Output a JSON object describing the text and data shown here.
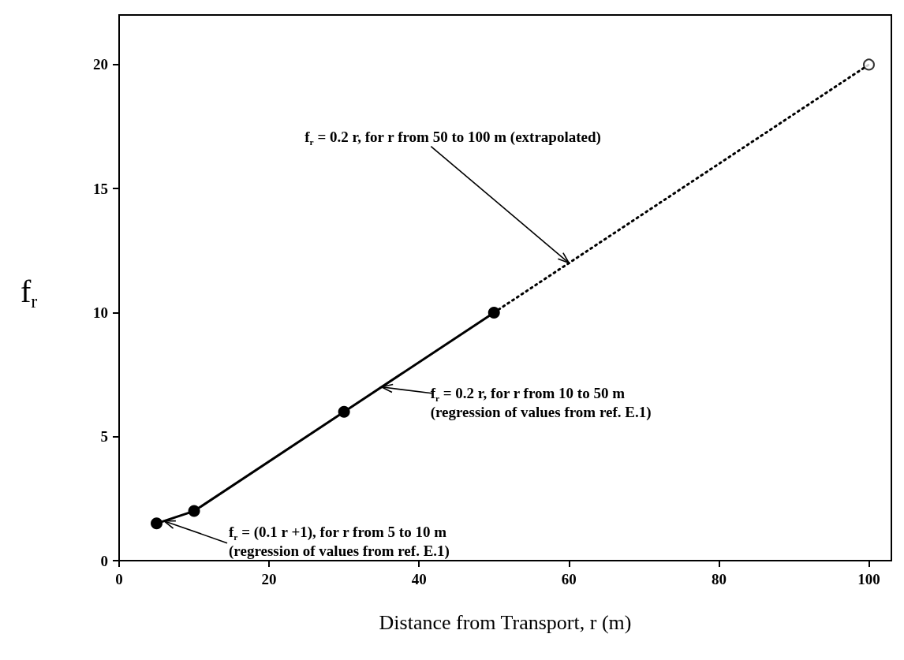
{
  "chart_data": {
    "type": "line",
    "xlabel": "Distance from Transport, r (m)",
    "ylabel": "f$_{r}$",
    "xlim": [
      0,
      103
    ],
    "xticks": [
      0,
      20,
      40,
      60,
      80,
      100
    ],
    "ylim": [
      0,
      22
    ],
    "yticks": [
      0,
      5,
      10,
      15,
      20
    ],
    "grid": false,
    "series": [
      {
        "x": [
          5,
          10,
          30,
          50
        ],
        "values": [
          1.5,
          2,
          6,
          10
        ],
        "color": "#000000",
        "marker": "circle",
        "line_style": "solid"
      },
      {
        "x": [
          50,
          100
        ],
        "values": [
          10,
          20
        ],
        "color": "#000000",
        "marker": "none",
        "line_style": "dotted"
      },
      {
        "type": "scatter",
        "x": [
          100
        ],
        "values": [
          20
        ],
        "color": "#000000",
        "marker": "circle"
      }
    ],
    "annotations": [
      {
        "text": "f$_{r}$ = 0.2 r, for r from 50 to 100 m (extrapolated)",
        "x": 60,
        "y": 12
      },
      {
        "text": "f$_{r}$ = 0.2 r, for r from 10 to 50 m\n(regression of values from ref. E.1)",
        "x": 35,
        "y": 7
      },
      {
        "text": "f$_{r}$ = (0.1 r +1), for r from 5 to 10 m\n(regression of values from ref. E.1)",
        "x": 6,
        "y": 1.6
      }
    ]
  }
}
